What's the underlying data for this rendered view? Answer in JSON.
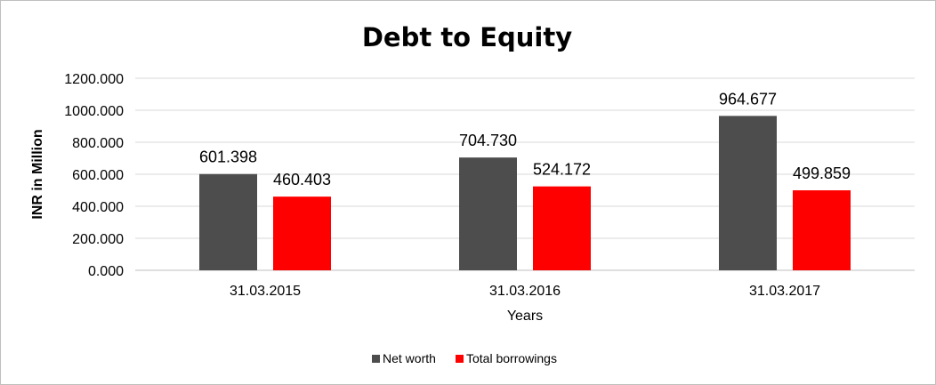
{
  "chart_data": {
    "type": "bar",
    "title": "Debt to Equity",
    "xlabel": "Years",
    "ylabel": "INR in Million",
    "categories": [
      "31.03.2015",
      "31.03.2016",
      "31.03.2017"
    ],
    "series": [
      {
        "name": "Net worth",
        "color": "#4d4d4d",
        "values": [
          601.398,
          704.73,
          964.677
        ],
        "labels": [
          "601.398",
          "704.730",
          "964.677"
        ]
      },
      {
        "name": "Total borrowings",
        "color": "#ff0000",
        "values": [
          460.403,
          524.172,
          499.859
        ],
        "labels": [
          "460.403",
          "524.172",
          "499.859"
        ]
      }
    ],
    "ylim": [
      0,
      1200
    ],
    "yticks": [
      "0.000",
      "200.000",
      "400.000",
      "600.000",
      "800.000",
      "1000.000",
      "1200.000"
    ],
    "grid": true,
    "legend_position": "bottom-center"
  }
}
